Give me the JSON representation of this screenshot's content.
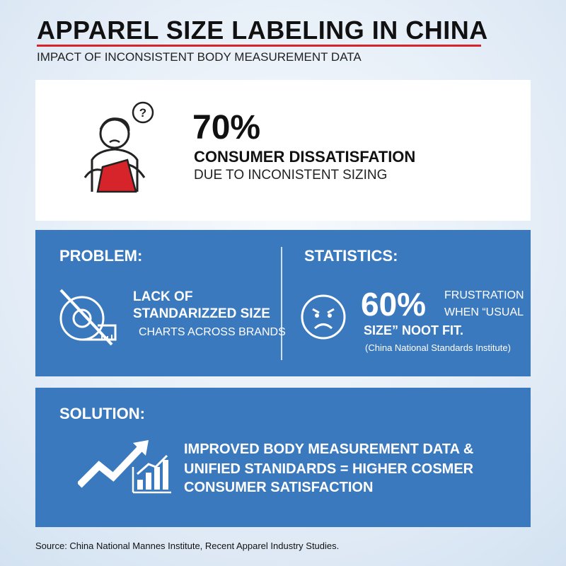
{
  "header": {
    "title": "APPAREL SIZE LABELING IN CHINA",
    "subtitle": "IMPACT OF INCONSISTENT BODY MEASUREMENT DATA"
  },
  "highlight": {
    "figure": "70%",
    "headline": "CONSUMER DISSATISFATION",
    "detail": "DUE TO INCONISTENT SIZING"
  },
  "problem": {
    "heading": "PROBLEM:",
    "lines": [
      "LACK OF",
      "STANDARIZZED SIZE",
      "CHARTS ACROSS BRANDS"
    ]
  },
  "statistics": {
    "heading": "STATISTICS:",
    "figure": "60%",
    "lines": [
      "FRUSTRATION",
      "WHEN “USUAL",
      "SIZE” NOOT FIT."
    ],
    "source": "(China National Standards Institute)"
  },
  "solution": {
    "heading": "SOLUTION:",
    "lines": [
      "IMPROVED BODY MEASUREMENT DATA &",
      "UNIFIED STANIDARDS = HIGHER COSMER",
      "CONSUMER SATISFACTION"
    ]
  },
  "footer": {
    "source": "Source: China National Mannes Institute, Recent Apparel Industry Studies."
  }
}
